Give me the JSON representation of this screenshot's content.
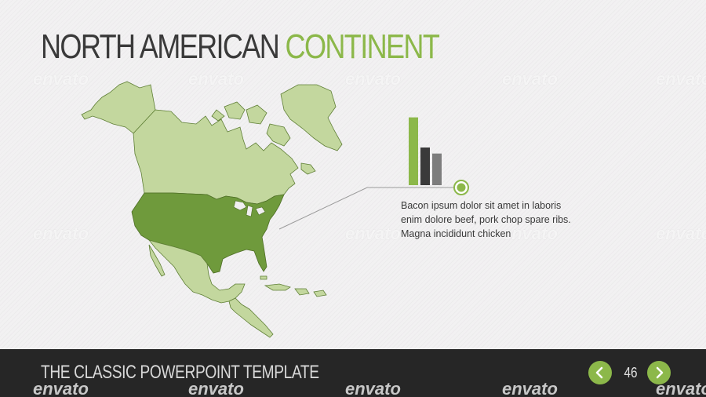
{
  "title": {
    "part1": "NORTH AMERICAN",
    "part2": "CONTINENT"
  },
  "description": {
    "lines": [
      "Bacon ipsum dolor sit amet in laboris",
      "enim dolore beef, pork chop spare ribs.",
      "Magna incididunt chicken"
    ]
  },
  "bar_values": [
    90,
    50,
    42
  ],
  "footer": {
    "title": "THE CLASSIC POWERPOINT TEMPLATE",
    "page_number": "46"
  },
  "watermark": "envato",
  "colors": {
    "accent": "#8cb84a",
    "map_light": "#c3d79e",
    "map_dark": "#6f9a3c",
    "bar_dark": "#3a3a3a",
    "bar_gray": "#7d7d7d",
    "footer_bg": "#262626"
  },
  "icons": {
    "prev": "chevron-left-icon",
    "next": "chevron-right-icon"
  }
}
